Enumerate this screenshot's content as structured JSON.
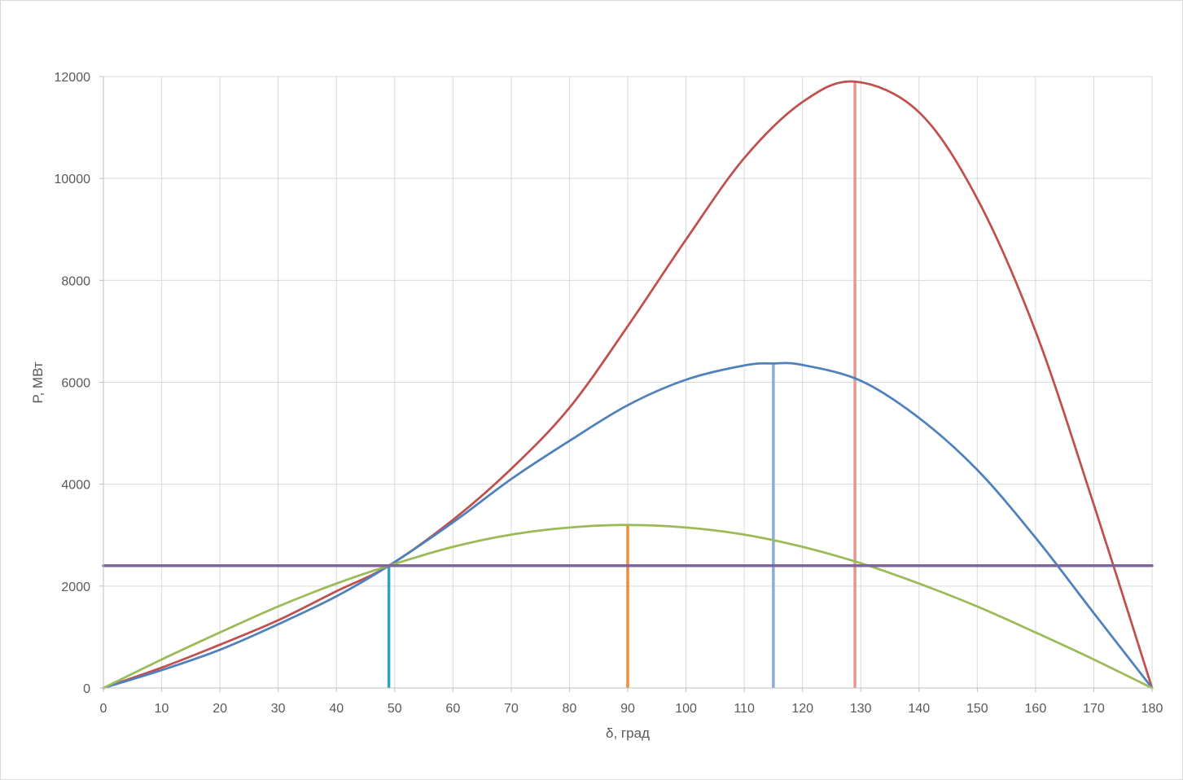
{
  "chart_data": {
    "type": "line",
    "title": "",
    "xlabel": "δ, град",
    "ylabel": "P, МВт",
    "xlim": [
      0,
      180
    ],
    "ylim": [
      0,
      12000
    ],
    "x_ticks": [
      0,
      10,
      20,
      30,
      40,
      50,
      60,
      70,
      80,
      90,
      100,
      110,
      120,
      130,
      140,
      150,
      160,
      170,
      180
    ],
    "y_ticks": [
      0,
      2000,
      4000,
      6000,
      8000,
      10000,
      12000
    ],
    "x_tick_labels": [
      "0",
      "10",
      "20",
      "30",
      "40",
      "50",
      "60",
      "70",
      "80",
      "90",
      "100",
      "110",
      "120",
      "130",
      "140",
      "150",
      "160",
      "170",
      "180"
    ],
    "y_tick_labels": [
      "0",
      "2000",
      "4000",
      "6000",
      "8000",
      "10000",
      "12000"
    ],
    "grid": true,
    "legend": "none",
    "series": [
      {
        "color": "#c0504d",
        "x": [
          0,
          10,
          20,
          30,
          40,
          49,
          60,
          70,
          80,
          90,
          100,
          110,
          120,
          129,
          140,
          150,
          160,
          170,
          180
        ],
        "y": [
          0,
          400,
          850,
          1330,
          1900,
          2400,
          3300,
          4300,
          5500,
          7100,
          8800,
          10400,
          11500,
          11900,
          11300,
          9600,
          7000,
          3600,
          0
        ]
      },
      {
        "color": "#4f81bd",
        "x": [
          0,
          10,
          20,
          30,
          40,
          49,
          60,
          70,
          80,
          90,
          100,
          110,
          115,
          120,
          130,
          140,
          150,
          160,
          170,
          180
        ],
        "y": [
          0,
          350,
          750,
          1250,
          1800,
          2400,
          3250,
          4100,
          4850,
          5550,
          6050,
          6330,
          6370,
          6340,
          6030,
          5300,
          4280,
          2950,
          1470,
          0
        ]
      },
      {
        "color": "#9bbb59",
        "x": [
          0,
          10,
          20,
          30,
          40,
          49,
          60,
          70,
          80,
          90,
          100,
          110,
          120,
          130,
          140,
          150,
          160,
          170,
          180
        ],
        "y": [
          0,
          560,
          1090,
          1600,
          2050,
          2400,
          2770,
          3010,
          3150,
          3200,
          3150,
          3010,
          2770,
          2450,
          2050,
          1600,
          1090,
          560,
          0
        ]
      },
      {
        "color": "#8064a2",
        "x": [
          0,
          180
        ],
        "y": [
          2400,
          2400
        ]
      }
    ],
    "vertical_markers": [
      {
        "x": 49,
        "y_top": 2400,
        "color": "#31a5c0"
      },
      {
        "x": 90,
        "y_top": 3200,
        "color": "#f08c3a"
      },
      {
        "x": 115,
        "y_top": 6370,
        "color": "#8faadc"
      },
      {
        "x": 129,
        "y_top": 11900,
        "color": "#e29895"
      }
    ]
  }
}
